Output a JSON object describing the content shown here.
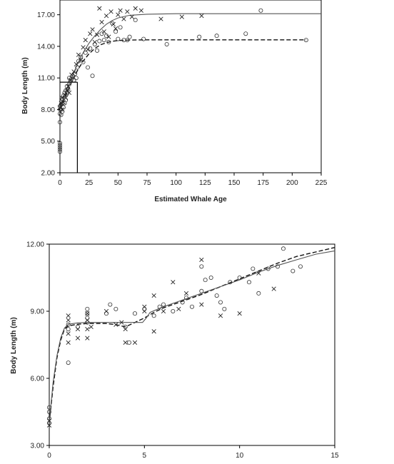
{
  "chart_data": [
    {
      "type": "scatter",
      "title": "",
      "xlabel": "Estimated Whale Age",
      "ylabel": "Body Length (m)",
      "xlim": [
        0,
        225
      ],
      "ylim": [
        2,
        18.4
      ],
      "xticks": [
        "0",
        "25",
        "50",
        "75",
        "100",
        "125",
        "150",
        "175",
        "200",
        "225"
      ],
      "yticks": [
        "2.00",
        "5.00",
        "8.00",
        "11.00",
        "14.00",
        "17.00"
      ],
      "legend": "none",
      "grid": false,
      "reference_lines": [
        {
          "orientation": "vertical",
          "x": 15,
          "y_range": [
            2,
            10.6
          ]
        },
        {
          "orientation": "horizontal",
          "y": 10.6,
          "x_range": [
            0,
            15
          ]
        }
      ],
      "series": [
        {
          "marker": "circle",
          "line": "dashed",
          "points": [
            [
              0,
              4.0
            ],
            [
              0,
              4.2
            ],
            [
              0,
              4.4
            ],
            [
              0,
              4.6
            ],
            [
              0,
              4.8
            ],
            [
              0,
              6.8
            ],
            [
              0,
              7.6
            ],
            [
              0,
              8.0
            ],
            [
              0,
              8.3
            ],
            [
              1,
              7.5
            ],
            [
              1,
              8.0
            ],
            [
              1,
              8.5
            ],
            [
              2,
              7.8
            ],
            [
              2,
              8.6
            ],
            [
              2,
              9.0
            ],
            [
              3,
              8.2
            ],
            [
              3,
              9.3
            ],
            [
              4,
              8.6
            ],
            [
              4,
              9.6
            ],
            [
              5,
              8.9
            ],
            [
              5,
              9.8
            ],
            [
              6,
              9.5
            ],
            [
              6,
              10.2
            ],
            [
              7,
              9.9
            ],
            [
              8,
              10.4
            ],
            [
              8,
              11.0
            ],
            [
              9,
              10.7
            ],
            [
              10,
              10.9
            ],
            [
              11,
              11.2
            ],
            [
              12,
              10.8
            ],
            [
              13,
              11.4
            ],
            [
              14,
              11.0
            ],
            [
              15,
              12.0
            ],
            [
              16,
              12.6
            ],
            [
              18,
              13.0
            ],
            [
              20,
              12.5
            ],
            [
              22,
              13.4
            ],
            [
              24,
              12.0
            ],
            [
              26,
              13.8
            ],
            [
              28,
              11.2
            ],
            [
              30,
              14.2
            ],
            [
              32,
              13.6
            ],
            [
              34,
              14.5
            ],
            [
              36,
              15.2
            ],
            [
              38,
              14.6
            ],
            [
              40,
              15.0
            ],
            [
              42,
              14.4
            ],
            [
              45,
              16.2
            ],
            [
              48,
              15.4
            ],
            [
              50,
              14.7
            ],
            [
              52,
              15.8
            ],
            [
              55,
              14.6
            ],
            [
              58,
              14.6
            ],
            [
              60,
              14.9
            ],
            [
              65,
              16.5
            ],
            [
              72,
              14.7
            ],
            [
              92,
              14.2
            ],
            [
              120,
              14.9
            ],
            [
              135,
              15.0
            ],
            [
              160,
              15.2
            ],
            [
              173,
              17.4
            ],
            [
              212,
              14.6
            ]
          ],
          "fit": [
            [
              0,
              8.1
            ],
            [
              5,
              9.3
            ],
            [
              10,
              10.6
            ],
            [
              15,
              11.7
            ],
            [
              20,
              12.6
            ],
            [
              25,
              13.3
            ],
            [
              30,
              13.8
            ],
            [
              35,
              14.15
            ],
            [
              40,
              14.35
            ],
            [
              45,
              14.48
            ],
            [
              50,
              14.55
            ],
            [
              60,
              14.6
            ],
            [
              75,
              14.62
            ],
            [
              100,
              14.62
            ],
            [
              150,
              14.62
            ],
            [
              212,
              14.62
            ]
          ]
        },
        {
          "marker": "x",
          "line": "solid",
          "points": [
            [
              0,
              8.2
            ],
            [
              1,
              8.6
            ],
            [
              2,
              8.0
            ],
            [
              2,
              9.1
            ],
            [
              3,
              8.7
            ],
            [
              4,
              9.4
            ],
            [
              5,
              9.1
            ],
            [
              6,
              9.8
            ],
            [
              7,
              10.2
            ],
            [
              8,
              9.6
            ],
            [
              9,
              10.8
            ],
            [
              10,
              11.3
            ],
            [
              12,
              11.6
            ],
            [
              14,
              12.3
            ],
            [
              16,
              13.2
            ],
            [
              18,
              12.7
            ],
            [
              20,
              13.9
            ],
            [
              22,
              14.6
            ],
            [
              24,
              13.7
            ],
            [
              26,
              15.2
            ],
            [
              28,
              15.6
            ],
            [
              30,
              14.4
            ],
            [
              32,
              15.1
            ],
            [
              34,
              17.6
            ],
            [
              36,
              16.3
            ],
            [
              38,
              15.4
            ],
            [
              40,
              16.9
            ],
            [
              42,
              14.9
            ],
            [
              44,
              17.3
            ],
            [
              46,
              16.1
            ],
            [
              48,
              15.7
            ],
            [
              50,
              17.0
            ],
            [
              52,
              17.4
            ],
            [
              55,
              16.6
            ],
            [
              58,
              17.3
            ],
            [
              62,
              16.8
            ],
            [
              65,
              17.6
            ],
            [
              70,
              17.4
            ],
            [
              87,
              16.6
            ],
            [
              105,
              16.8
            ],
            [
              122,
              16.9
            ]
          ],
          "fit": [
            [
              0,
              8.2
            ],
            [
              5,
              9.7
            ],
            [
              10,
              11.0
            ],
            [
              15,
              12.3
            ],
            [
              20,
              13.4
            ],
            [
              25,
              14.3
            ],
            [
              30,
              15.0
            ],
            [
              35,
              15.6
            ],
            [
              40,
              16.1
            ],
            [
              45,
              16.45
            ],
            [
              50,
              16.7
            ],
            [
              60,
              16.95
            ],
            [
              75,
              17.05
            ],
            [
              100,
              17.1
            ],
            [
              150,
              17.1
            ],
            [
              225,
              17.1
            ]
          ]
        }
      ]
    },
    {
      "type": "scatter",
      "title": "",
      "xlabel": "",
      "ylabel": "Body Length (m)",
      "xlim": [
        0,
        15
      ],
      "ylim": [
        3,
        12
      ],
      "xticks": [
        "0",
        "5",
        "10",
        "15"
      ],
      "yticks": [
        "3.00",
        "6.00",
        "9.00",
        "12.00"
      ],
      "legend": "none",
      "grid": false,
      "series": [
        {
          "marker": "circle",
          "line": "dashed",
          "points": [
            [
              0,
              4.0
            ],
            [
              0,
              4.2
            ],
            [
              0,
              4.5
            ],
            [
              0,
              4.7
            ],
            [
              1,
              6.7
            ],
            [
              1,
              8.2
            ],
            [
              1,
              8.4
            ],
            [
              1.5,
              8.3
            ],
            [
              2,
              8.5
            ],
            [
              2,
              8.7
            ],
            [
              2,
              8.9
            ],
            [
              2,
              9.1
            ],
            [
              3,
              8.9
            ],
            [
              3.2,
              9.3
            ],
            [
              3.5,
              9.1
            ],
            [
              4,
              8.3
            ],
            [
              4.5,
              8.9
            ],
            [
              5,
              9.1
            ],
            [
              5.5,
              8.8
            ],
            [
              5.8,
              9.2
            ],
            [
              6,
              9.3
            ],
            [
              6.5,
              9.0
            ],
            [
              7,
              9.4
            ],
            [
              7.2,
              9.6
            ],
            [
              7.5,
              9.2
            ],
            [
              8,
              9.9
            ],
            [
              8.2,
              10.4
            ],
            [
              8.5,
              10.5
            ],
            [
              8.8,
              9.7
            ],
            [
              9,
              9.4
            ],
            [
              9.2,
              9.1
            ],
            [
              9.5,
              10.3
            ],
            [
              10,
              10.5
            ],
            [
              10.5,
              10.3
            ],
            [
              10.7,
              10.9
            ],
            [
              11,
              9.8
            ],
            [
              11.5,
              10.9
            ],
            [
              12,
              11.0
            ],
            [
              12.3,
              11.8
            ],
            [
              12.8,
              10.8
            ],
            [
              13.2,
              11.0
            ],
            [
              8,
              11.0
            ],
            [
              4.2,
              7.6
            ]
          ],
          "fit": [
            [
              0,
              4.0
            ],
            [
              0.2,
              5.6
            ],
            [
              0.4,
              6.9
            ],
            [
              0.6,
              7.7
            ],
            [
              0.8,
              8.2
            ],
            [
              1,
              8.35
            ],
            [
              1.5,
              8.42
            ],
            [
              2,
              8.45
            ],
            [
              3,
              8.45
            ],
            [
              3.5,
              8.4
            ],
            [
              4,
              8.3
            ],
            [
              4.5,
              8.5
            ],
            [
              5,
              8.7
            ],
            [
              5.5,
              8.95
            ],
            [
              6,
              9.15
            ],
            [
              7,
              9.45
            ],
            [
              8,
              9.75
            ],
            [
              9,
              10.1
            ],
            [
              10,
              10.45
            ],
            [
              11,
              10.8
            ],
            [
              12,
              11.15
            ],
            [
              13,
              11.45
            ],
            [
              14,
              11.65
            ],
            [
              15,
              11.85
            ]
          ]
        },
        {
          "marker": "x",
          "line": "solid",
          "points": [
            [
              0,
              3.9
            ],
            [
              0,
              4.1
            ],
            [
              1,
              7.6
            ],
            [
              1,
              8.0
            ],
            [
              1,
              8.6
            ],
            [
              1,
              8.8
            ],
            [
              1.5,
              7.8
            ],
            [
              1.5,
              8.2
            ],
            [
              2,
              7.8
            ],
            [
              2,
              8.2
            ],
            [
              2,
              8.6
            ],
            [
              2,
              8.9
            ],
            [
              2.2,
              8.3
            ],
            [
              3,
              9.0
            ],
            [
              3.5,
              8.4
            ],
            [
              4,
              8.2
            ],
            [
              4,
              7.6
            ],
            [
              4.5,
              7.6
            ],
            [
              5,
              9.2
            ],
            [
              5,
              9.0
            ],
            [
              5.5,
              9.7
            ],
            [
              5.5,
              8.1
            ],
            [
              6,
              9.0
            ],
            [
              6.5,
              10.3
            ],
            [
              6.8,
              9.1
            ],
            [
              7.2,
              9.8
            ],
            [
              8,
              11.3
            ],
            [
              8,
              9.3
            ],
            [
              9,
              8.8
            ],
            [
              10,
              8.9
            ],
            [
              11,
              10.7
            ],
            [
              11.8,
              10.0
            ],
            [
              3.8,
              8.5
            ]
          ],
          "fit": [
            [
              0,
              4.0
            ],
            [
              0.2,
              5.8
            ],
            [
              0.4,
              7.0
            ],
            [
              0.6,
              7.8
            ],
            [
              0.8,
              8.25
            ],
            [
              1,
              8.42
            ],
            [
              1.5,
              8.48
            ],
            [
              2,
              8.5
            ],
            [
              3,
              8.5
            ],
            [
              4,
              8.5
            ],
            [
              4.9,
              8.5
            ],
            [
              5.1,
              8.7
            ],
            [
              5.3,
              8.95
            ],
            [
              6,
              9.2
            ],
            [
              7,
              9.5
            ],
            [
              8,
              9.8
            ],
            [
              9,
              10.1
            ],
            [
              10,
              10.4
            ],
            [
              11,
              10.75
            ],
            [
              12,
              11.05
            ],
            [
              13,
              11.3
            ],
            [
              14,
              11.55
            ],
            [
              15,
              11.7
            ]
          ]
        }
      ]
    }
  ]
}
